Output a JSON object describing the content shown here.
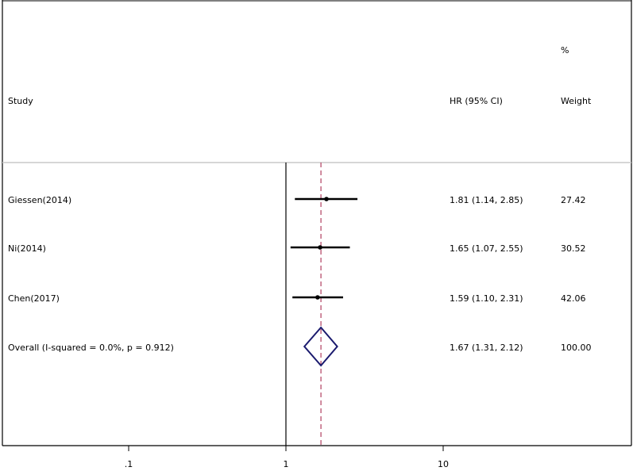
{
  "chart_data": {
    "type": "forest",
    "header": {
      "study": "Study",
      "effect": "HR (95% CI)",
      "weight_top": "%",
      "weight": "Weight"
    },
    "studies": [
      {
        "label": "Giessen(2014)",
        "hr": 1.81,
        "lo": 1.14,
        "hi": 2.85,
        "ci_text": "1.81 (1.14, 2.85)",
        "weight": "27.42"
      },
      {
        "label": "Ni(2014)",
        "hr": 1.65,
        "lo": 1.07,
        "hi": 2.55,
        "ci_text": "1.65 (1.07, 2.55)",
        "weight": "30.52"
      },
      {
        "label": "Chen(2017)",
        "hr": 1.59,
        "lo": 1.1,
        "hi": 2.31,
        "ci_text": "1.59 (1.10, 2.31)",
        "weight": "42.06"
      }
    ],
    "overall": {
      "label": "Overall  (I-squared = 0.0%, p = 0.912)",
      "hr": 1.67,
      "lo": 1.31,
      "hi": 2.12,
      "ci_text": "1.67 (1.31, 2.12)",
      "weight": "100.00"
    },
    "x_axis": {
      "scale": "log",
      "ticks": [
        {
          "value": 0.1,
          "label": ".1"
        },
        {
          "value": 1,
          "label": "1"
        },
        {
          "value": 10,
          "label": "10"
        }
      ]
    },
    "reference_line": 1,
    "colors": {
      "diamond": "#1a1a6e",
      "overall_line": "#b04060",
      "ci": "#000000"
    }
  }
}
